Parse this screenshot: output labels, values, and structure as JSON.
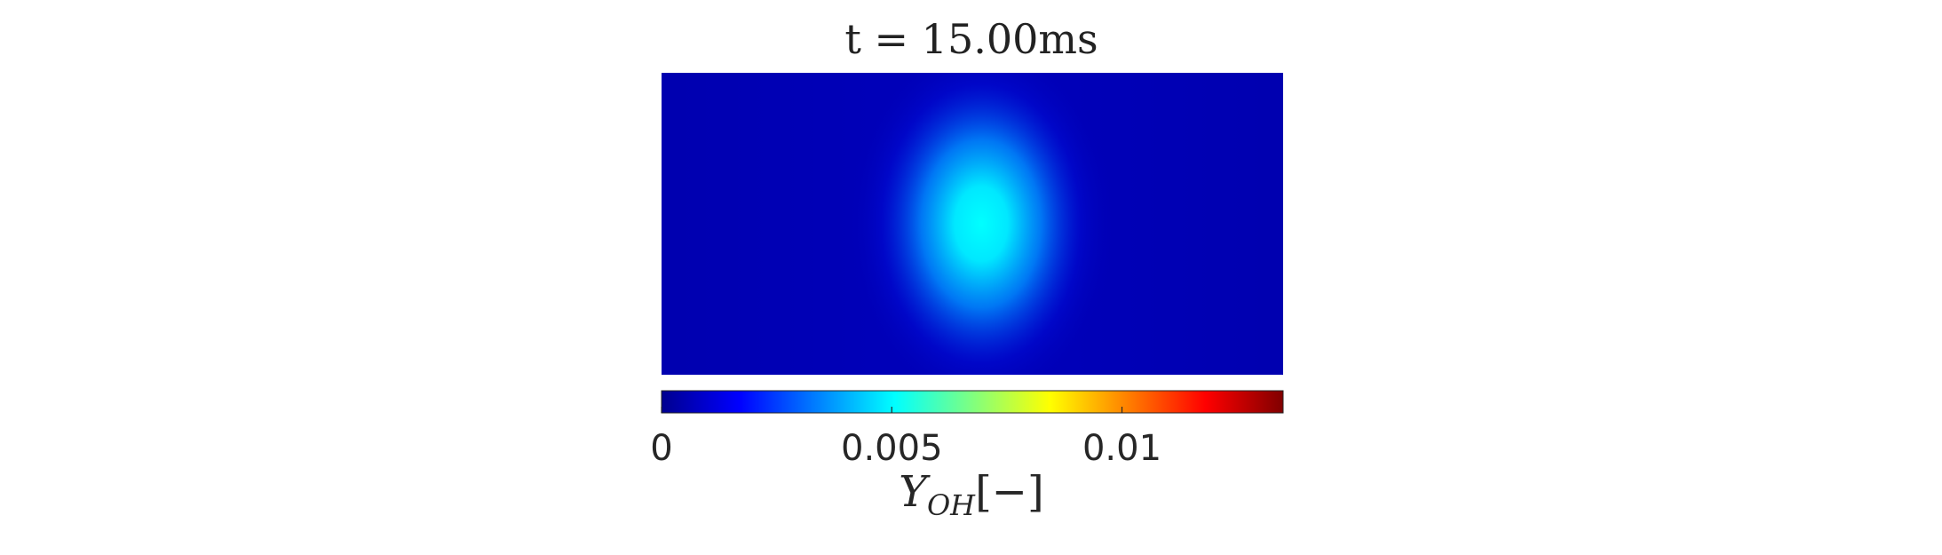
{
  "chart_data": {
    "type": "heatmap",
    "title": "t = 15.00ms",
    "colorbar": {
      "label_main": "Y",
      "label_sub": "OH",
      "label_unit": "[−]",
      "ticks": [
        {
          "value": 0,
          "label": "0"
        },
        {
          "value": 0.005,
          "label": "0.005"
        },
        {
          "value": 0.01,
          "label": "0.01"
        }
      ],
      "range": [
        0,
        0.0135
      ],
      "colormap": "jet",
      "orientation": "horizontal",
      "placement": "below"
    },
    "field": {
      "background_value": 0.0005,
      "peak_value": 0.0046,
      "peak_location": [
        0.51,
        0.5
      ],
      "description_shape": "single circular gaussian spot"
    },
    "axes_visible": false
  }
}
